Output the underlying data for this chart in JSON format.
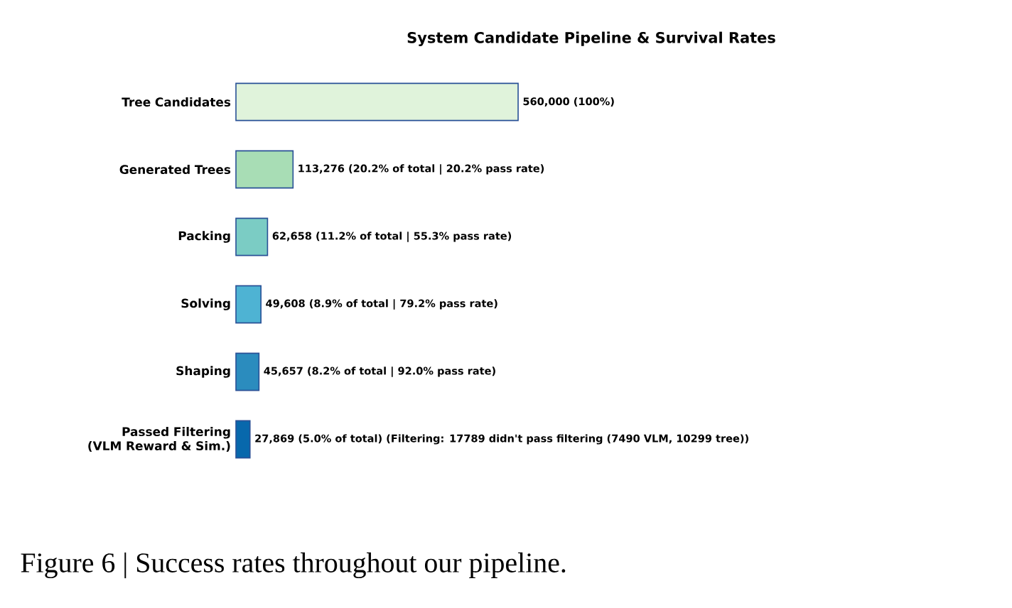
{
  "chart_data": {
    "type": "bar",
    "orientation": "horizontal",
    "title": "System Candidate Pipeline & Survival Rates",
    "categories": [
      "Tree Candidates",
      "Generated Trees",
      "Packing",
      "Solving",
      "Shaping",
      "Passed Filtering (VLM Reward & Sim.)"
    ],
    "values": [
      560000,
      113276,
      62658,
      49608,
      45657,
      27869
    ],
    "colors": [
      "#e0f3db",
      "#a8ddb5",
      "#7bccc4",
      "#4eb3d3",
      "#2b8cbe",
      "#0868ac"
    ],
    "value_labels": [
      "560,000 (100%)",
      "113,276 (20.2% of total | 20.2% pass rate)",
      "62,658 (11.2% of total | 55.3% pass rate)",
      "49,608 (8.9% of total | 79.2% pass rate)",
      "45,657 (8.2% of total | 92.0% pass rate)",
      "27,869 (5.0% of total)  (Filtering: 17789 didn't pass filtering (7490 VLM, 10299 tree))"
    ],
    "annotations": [
      "Figure 6 | Success rates throughout our pipeline."
    ]
  }
}
